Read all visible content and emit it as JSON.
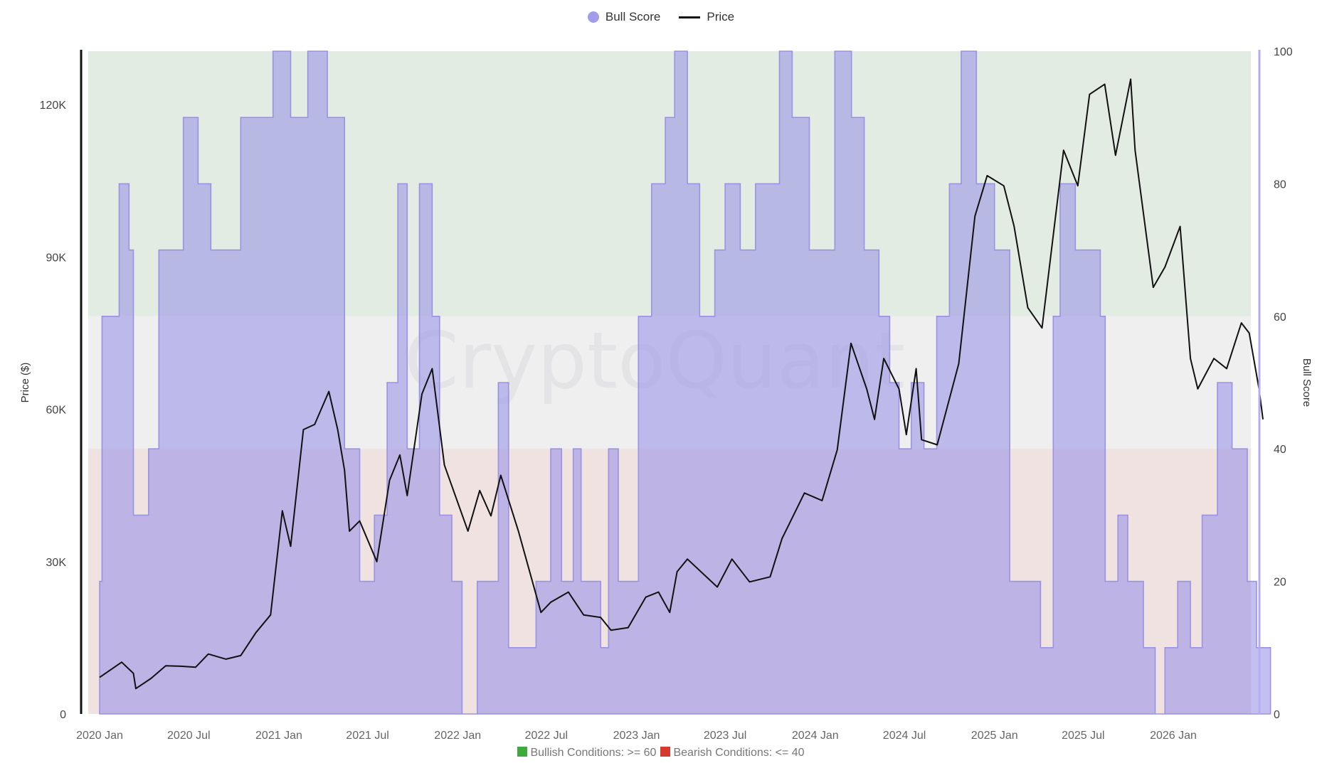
{
  "legend": {
    "bull_label": "Bull Score",
    "price_label": "Price",
    "bull_color": "#9e98e6",
    "price_color": "#111111"
  },
  "watermark": "CryptoQuant",
  "footer": {
    "bullish_text": "Bullish Conditions: >= 60",
    "bearish_text": "Bearish Conditions: <= 40",
    "bullish_color": "#3cab3c",
    "bearish_color": "#d63a2f"
  },
  "chart_data": {
    "type": "area",
    "ylabel_left": "Price ($)",
    "ylabel_right": "Bull Score",
    "x_ticks": [
      "2020 Jan",
      "2020 Jul",
      "2021 Jan",
      "2021 Jul",
      "2022 Jan",
      "2022 Jul",
      "2023 Jan",
      "2023 Jul",
      "2024 Jan",
      "2024 Jul",
      "2025 Jan",
      "2025 Jul",
      "2026 Jan"
    ],
    "x_range": [
      "2020-01-01",
      "2026-07-15"
    ],
    "y_left_ticks": [
      "0",
      "30K",
      "60K",
      "90K",
      "120K"
    ],
    "y_left_range": [
      0,
      130000
    ],
    "y_right_ticks": [
      "0",
      "20",
      "40",
      "60",
      "80",
      "100"
    ],
    "y_right_range": [
      0,
      100
    ],
    "zones": [
      {
        "name": "bullish",
        "from": 60,
        "to": 100,
        "color": "#e2ece3"
      },
      {
        "name": "neutral",
        "from": 40,
        "to": 60,
        "color": "#efefef"
      },
      {
        "name": "bearish",
        "from": 0,
        "to": 40,
        "color": "#efe2e1"
      }
    ],
    "series": [
      {
        "name": "Bull Score",
        "axis": "right",
        "color": "#9e98e6",
        "points": [
          [
            "2020-01-01",
            20
          ],
          [
            "2020-01-06",
            60
          ],
          [
            "2020-02-01",
            60
          ],
          [
            "2020-02-10",
            80
          ],
          [
            "2020-03-01",
            70
          ],
          [
            "2020-03-10",
            30
          ],
          [
            "2020-04-10",
            40
          ],
          [
            "2020-05-01",
            70
          ],
          [
            "2020-06-01",
            70
          ],
          [
            "2020-06-20",
            90
          ],
          [
            "2020-07-20",
            80
          ],
          [
            "2020-08-15",
            70
          ],
          [
            "2020-09-15",
            70
          ],
          [
            "2020-10-15",
            90
          ],
          [
            "2020-11-01",
            90
          ],
          [
            "2020-12-20",
            100
          ],
          [
            "2021-01-25",
            90
          ],
          [
            "2021-03-01",
            100
          ],
          [
            "2021-04-10",
            90
          ],
          [
            "2021-05-15",
            40
          ],
          [
            "2021-06-15",
            20
          ],
          [
            "2021-07-15",
            30
          ],
          [
            "2021-08-10",
            50
          ],
          [
            "2021-09-01",
            80
          ],
          [
            "2021-09-20",
            40
          ],
          [
            "2021-10-15",
            80
          ],
          [
            "2021-11-10",
            60
          ],
          [
            "2021-11-25",
            30
          ],
          [
            "2021-12-20",
            20
          ],
          [
            "2022-01-10",
            0
          ],
          [
            "2022-02-10",
            20
          ],
          [
            "2022-03-25",
            50
          ],
          [
            "2022-04-15",
            10
          ],
          [
            "2022-05-15",
            10
          ],
          [
            "2022-06-10",
            20
          ],
          [
            "2022-07-10",
            40
          ],
          [
            "2022-08-01",
            20
          ],
          [
            "2022-08-25",
            40
          ],
          [
            "2022-09-10",
            20
          ],
          [
            "2022-10-20",
            10
          ],
          [
            "2022-11-05",
            40
          ],
          [
            "2022-11-25",
            20
          ],
          [
            "2022-12-25",
            20
          ],
          [
            "2023-01-05",
            60
          ],
          [
            "2023-02-01",
            80
          ],
          [
            "2023-03-01",
            90
          ],
          [
            "2023-03-20",
            100
          ],
          [
            "2023-04-15",
            80
          ],
          [
            "2023-05-10",
            60
          ],
          [
            "2023-06-10",
            70
          ],
          [
            "2023-07-01",
            80
          ],
          [
            "2023-08-01",
            70
          ],
          [
            "2023-09-01",
            80
          ],
          [
            "2023-10-20",
            100
          ],
          [
            "2023-11-15",
            90
          ],
          [
            "2023-12-20",
            70
          ],
          [
            "2024-01-15",
            70
          ],
          [
            "2024-02-10",
            100
          ],
          [
            "2024-03-15",
            90
          ],
          [
            "2024-04-10",
            70
          ],
          [
            "2024-05-10",
            60
          ],
          [
            "2024-06-01",
            50
          ],
          [
            "2024-06-20",
            40
          ],
          [
            "2024-07-15",
            50
          ],
          [
            "2024-08-10",
            40
          ],
          [
            "2024-09-05",
            60
          ],
          [
            "2024-10-01",
            80
          ],
          [
            "2024-10-25",
            100
          ],
          [
            "2024-11-25",
            80
          ],
          [
            "2025-01-01",
            70
          ],
          [
            "2025-02-01",
            20
          ],
          [
            "2025-03-10",
            20
          ],
          [
            "2025-04-05",
            10
          ],
          [
            "2025-05-01",
            60
          ],
          [
            "2025-05-15",
            80
          ],
          [
            "2025-06-15",
            70
          ],
          [
            "2025-07-15",
            70
          ],
          [
            "2025-08-05",
            60
          ],
          [
            "2025-08-15",
            20
          ],
          [
            "2025-09-10",
            30
          ],
          [
            "2025-09-30",
            20
          ],
          [
            "2025-11-01",
            10
          ],
          [
            "2025-11-25",
            0
          ],
          [
            "2025-12-15",
            10
          ],
          [
            "2026-01-10",
            20
          ],
          [
            "2026-02-05",
            10
          ],
          [
            "2026-03-01",
            30
          ],
          [
            "2026-04-01",
            50
          ],
          [
            "2026-05-01",
            40
          ],
          [
            "2026-06-01",
            20
          ],
          [
            "2026-06-20",
            10
          ],
          [
            "2026-07-01",
            10
          ]
        ]
      },
      {
        "name": "Price",
        "axis": "left",
        "color": "#111111",
        "points": [
          [
            "2020-01-01",
            7200
          ],
          [
            "2020-02-15",
            10200
          ],
          [
            "2020-03-10",
            8000
          ],
          [
            "2020-03-15",
            5000
          ],
          [
            "2020-04-15",
            7000
          ],
          [
            "2020-05-15",
            9500
          ],
          [
            "2020-06-15",
            9400
          ],
          [
            "2020-07-15",
            9200
          ],
          [
            "2020-08-10",
            11800
          ],
          [
            "2020-09-15",
            10800
          ],
          [
            "2020-10-15",
            11500
          ],
          [
            "2020-11-15",
            16000
          ],
          [
            "2020-12-15",
            19500
          ],
          [
            "2021-01-08",
            40000
          ],
          [
            "2021-01-25",
            33000
          ],
          [
            "2021-02-20",
            56000
          ],
          [
            "2021-03-15",
            57000
          ],
          [
            "2021-04-13",
            63500
          ],
          [
            "2021-05-01",
            56000
          ],
          [
            "2021-05-15",
            48000
          ],
          [
            "2021-05-25",
            36000
          ],
          [
            "2021-06-15",
            38000
          ],
          [
            "2021-07-20",
            30000
          ],
          [
            "2021-08-15",
            46000
          ],
          [
            "2021-09-05",
            51000
          ],
          [
            "2021-09-20",
            43000
          ],
          [
            "2021-10-20",
            63000
          ],
          [
            "2021-11-10",
            68000
          ],
          [
            "2021-12-05",
            49000
          ],
          [
            "2022-01-22",
            36000
          ],
          [
            "2022-02-15",
            44000
          ],
          [
            "2022-03-10",
            39000
          ],
          [
            "2022-03-30",
            47000
          ],
          [
            "2022-05-05",
            36000
          ],
          [
            "2022-06-20",
            20000
          ],
          [
            "2022-07-10",
            22000
          ],
          [
            "2022-08-15",
            24000
          ],
          [
            "2022-09-15",
            19500
          ],
          [
            "2022-10-20",
            19000
          ],
          [
            "2022-11-10",
            16500
          ],
          [
            "2022-12-15",
            17000
          ],
          [
            "2023-01-20",
            23000
          ],
          [
            "2023-02-15",
            24000
          ],
          [
            "2023-03-10",
            20000
          ],
          [
            "2023-03-25",
            28000
          ],
          [
            "2023-04-15",
            30500
          ],
          [
            "2023-06-15",
            25000
          ],
          [
            "2023-07-15",
            30500
          ],
          [
            "2023-08-20",
            26000
          ],
          [
            "2023-10-01",
            27000
          ],
          [
            "2023-10-25",
            34500
          ],
          [
            "2023-12-10",
            43500
          ],
          [
            "2024-01-15",
            42000
          ],
          [
            "2024-02-15",
            52000
          ],
          [
            "2024-03-14",
            73000
          ],
          [
            "2024-04-15",
            64000
          ],
          [
            "2024-05-01",
            58000
          ],
          [
            "2024-05-20",
            70000
          ],
          [
            "2024-06-20",
            64000
          ],
          [
            "2024-07-05",
            55000
          ],
          [
            "2024-07-25",
            68000
          ],
          [
            "2024-08-05",
            54000
          ],
          [
            "2024-09-06",
            53000
          ],
          [
            "2024-10-20",
            69000
          ],
          [
            "2024-11-22",
            98000
          ],
          [
            "2024-12-17",
            106000
          ],
          [
            "2025-01-20",
            104000
          ],
          [
            "2025-02-10",
            96000
          ],
          [
            "2025-03-10",
            80000
          ],
          [
            "2025-04-08",
            76000
          ],
          [
            "2025-05-22",
            111000
          ],
          [
            "2025-06-20",
            104000
          ],
          [
            "2025-07-14",
            122000
          ],
          [
            "2025-08-14",
            124000
          ],
          [
            "2025-09-05",
            110000
          ],
          [
            "2025-10-06",
            125000
          ],
          [
            "2025-10-15",
            111000
          ],
          [
            "2025-11-21",
            84000
          ],
          [
            "2025-12-15",
            88000
          ],
          [
            "2026-01-15",
            96000
          ],
          [
            "2026-02-05",
            70000
          ],
          [
            "2026-02-20",
            64000
          ],
          [
            "2026-03-25",
            70000
          ],
          [
            "2026-04-20",
            68000
          ],
          [
            "2026-05-20",
            77000
          ],
          [
            "2026-06-05",
            75000
          ],
          [
            "2026-06-25",
            64000
          ],
          [
            "2026-07-03",
            58000
          ]
        ]
      }
    ]
  }
}
